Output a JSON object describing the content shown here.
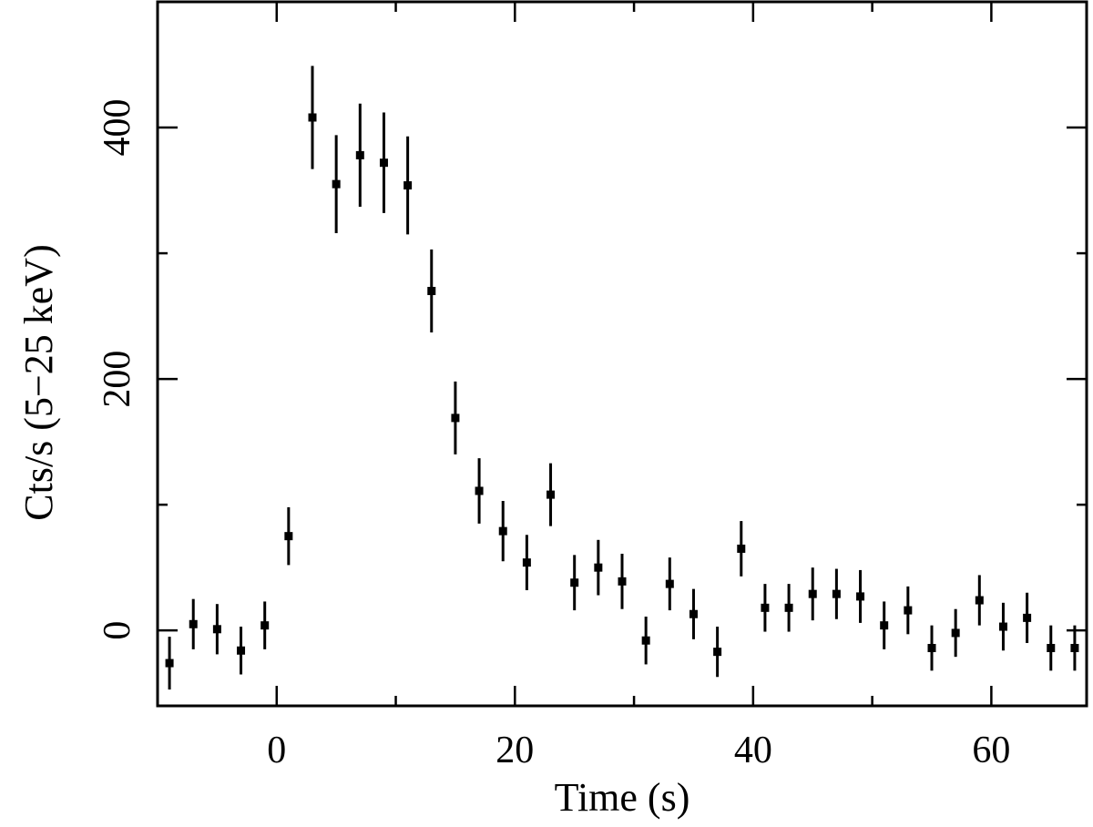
{
  "chart_data": {
    "type": "scatter",
    "title": "",
    "xlabel": "Time (s)",
    "ylabel": "Cts/s (5−25 keV)",
    "xlim": [
      -10,
      68
    ],
    "ylim": [
      -60,
      500
    ],
    "grid": false,
    "legend": "none",
    "marker_color": "#000000",
    "x_ticks": {
      "major": [
        0,
        20,
        40,
        60
      ],
      "major_labels": [
        "0",
        "20",
        "40",
        "60"
      ],
      "minor": [
        -10,
        10,
        30,
        50
      ]
    },
    "y_ticks": {
      "major": [
        0,
        200,
        400
      ],
      "major_labels": [
        "0",
        "200",
        "400"
      ],
      "minor": [
        100,
        300
      ]
    },
    "series": [
      {
        "x": [
          -9,
          -7,
          -5,
          -3,
          -1,
          1,
          3,
          5,
          7,
          9,
          11,
          13,
          15,
          17,
          19,
          21,
          23,
          25,
          27,
          29,
          31,
          33,
          35,
          37,
          39,
          41,
          43,
          45,
          47,
          49,
          51,
          53,
          55,
          57,
          59,
          61,
          63,
          65,
          67
        ],
        "y": [
          -26,
          5,
          1,
          -16,
          4,
          75,
          408,
          355,
          378,
          372,
          354,
          270,
          169,
          111,
          79,
          54,
          108,
          38,
          50,
          39,
          -8,
          37,
          13,
          -17,
          65,
          18,
          18,
          29,
          29,
          27,
          4,
          16,
          -14,
          -2,
          24,
          3,
          10,
          -14,
          -14
        ],
        "yerr": [
          21,
          20,
          20,
          19,
          19,
          23,
          41,
          39,
          41,
          40,
          39,
          33,
          29,
          26,
          24,
          22,
          25,
          22,
          22,
          22,
          19,
          21,
          20,
          20,
          22,
          19,
          19,
          21,
          20,
          21,
          19,
          19,
          18,
          19,
          20,
          19,
          20,
          18,
          18
        ]
      }
    ]
  }
}
